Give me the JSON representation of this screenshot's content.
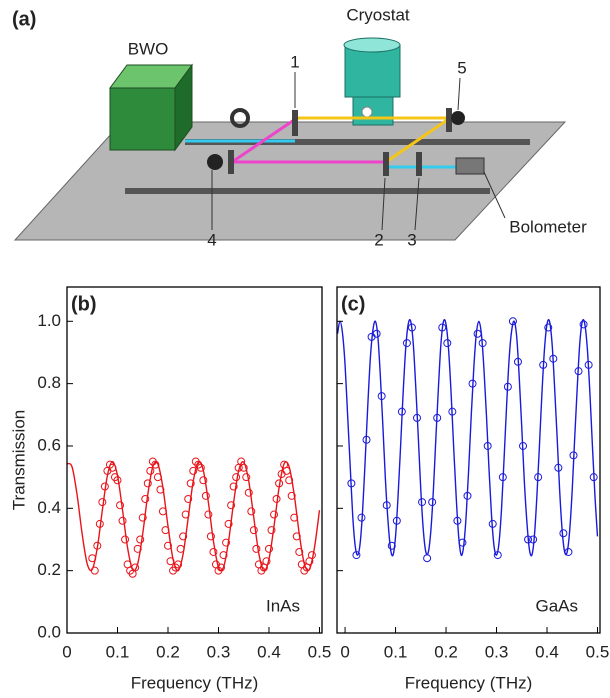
{
  "diagram": {
    "panel_label": "(a)",
    "components": {
      "source": "BWO",
      "cryostat": "Cryostat",
      "detector": "Bolometer"
    },
    "mirrors": [
      "1",
      "2",
      "3",
      "4",
      "5"
    ]
  },
  "chart_data": [
    {
      "type": "scatter",
      "panel_label": "(b)",
      "annotation": "InAs",
      "xlabel": "Frequency (THz)",
      "ylabel": "Transmission",
      "show_ytick_labels": true,
      "xlim": [
        0,
        0.505
      ],
      "ylim": [
        0,
        1.11
      ],
      "xticks": [
        0,
        0.1,
        0.2,
        0.3,
        0.4,
        0.5
      ],
      "yticks": [
        {
          "value": 0,
          "label": "0.0"
        },
        0.2,
        0.4,
        0.6,
        0.8,
        {
          "value": 1,
          "label": "1.0"
        }
      ],
      "series": [
        {
          "mode": "line",
          "color": "#e8141a",
          "x": [
            0,
            0.01,
            0.02,
            0.03,
            0.04,
            0.05,
            0.06,
            0.07,
            0.08,
            0.09,
            0.1,
            0.11,
            0.12,
            0.13,
            0.14,
            0.15,
            0.16,
            0.17,
            0.18,
            0.19,
            0.2,
            0.21,
            0.22,
            0.23,
            0.24,
            0.25,
            0.26,
            0.27,
            0.28,
            0.29,
            0.3,
            0.31,
            0.32,
            0.33,
            0.34,
            0.35,
            0.36,
            0.37,
            0.38,
            0.39,
            0.4,
            0.41,
            0.42,
            0.43,
            0.44,
            0.45,
            0.46,
            0.47,
            0.48,
            0.49,
            0.5
          ],
          "values": [
            0.543,
            0.533,
            0.443,
            0.318,
            0.222,
            0.204,
            0.273,
            0.394,
            0.505,
            0.55,
            0.505,
            0.394,
            0.273,
            0.204,
            0.222,
            0.319,
            0.444,
            0.534,
            0.542,
            0.466,
            0.343,
            0.237,
            0.2,
            0.254,
            0.369,
            0.487,
            0.548,
            0.521,
            0.419,
            0.295,
            0.211,
            0.211,
            0.295,
            0.419,
            0.521,
            0.548,
            0.487,
            0.369,
            0.254,
            0.2,
            0.237,
            0.343,
            0.466,
            0.543,
            0.533,
            0.443,
            0.318,
            0.222,
            0.204,
            0.273,
            0.394
          ]
        },
        {
          "mode": "markers",
          "color": "#e8141a",
          "x": [
            0.05,
            0.055,
            0.06,
            0.065,
            0.07,
            0.075,
            0.08,
            0.085,
            0.09,
            0.095,
            0.1,
            0.105,
            0.11,
            0.115,
            0.12,
            0.125,
            0.13,
            0.135,
            0.14,
            0.145,
            0.15,
            0.155,
            0.16,
            0.165,
            0.17,
            0.175,
            0.18,
            0.185,
            0.19,
            0.195,
            0.2,
            0.205,
            0.21,
            0.215,
            0.22,
            0.225,
            0.23,
            0.235,
            0.24,
            0.245,
            0.25,
            0.255,
            0.26,
            0.265,
            0.27,
            0.275,
            0.28,
            0.285,
            0.29,
            0.295,
            0.3,
            0.305,
            0.31,
            0.315,
            0.32,
            0.325,
            0.33,
            0.335,
            0.34,
            0.345,
            0.35,
            0.355,
            0.36,
            0.365,
            0.37,
            0.375,
            0.38,
            0.385,
            0.39,
            0.395,
            0.4,
            0.405,
            0.41,
            0.415,
            0.42,
            0.425,
            0.43,
            0.435,
            0.44,
            0.445,
            0.45,
            0.455,
            0.46,
            0.465,
            0.47,
            0.475,
            0.48,
            0.485
          ],
          "values": [
            0.24,
            0.2,
            0.28,
            0.35,
            0.42,
            0.47,
            0.52,
            0.54,
            0.53,
            0.5,
            0.49,
            0.41,
            0.36,
            0.3,
            0.22,
            0.2,
            0.19,
            0.21,
            0.27,
            0.3,
            0.37,
            0.43,
            0.48,
            0.52,
            0.55,
            0.54,
            0.5,
            0.46,
            0.39,
            0.33,
            0.28,
            0.23,
            0.2,
            0.21,
            0.22,
            0.27,
            0.31,
            0.38,
            0.43,
            0.48,
            0.52,
            0.55,
            0.54,
            0.53,
            0.49,
            0.44,
            0.38,
            0.31,
            0.26,
            0.22,
            0.2,
            0.21,
            0.25,
            0.29,
            0.35,
            0.41,
            0.47,
            0.5,
            0.53,
            0.55,
            0.53,
            0.5,
            0.45,
            0.39,
            0.33,
            0.27,
            0.22,
            0.2,
            0.21,
            0.23,
            0.27,
            0.33,
            0.38,
            0.43,
            0.48,
            0.51,
            0.54,
            0.52,
            0.49,
            0.44,
            0.37,
            0.31,
            0.26,
            0.22,
            0.2,
            0.21,
            0.23,
            0.25
          ]
        }
      ]
    },
    {
      "type": "scatter",
      "panel_label": "(c)",
      "annotation": "GaAs",
      "xlabel": "Frequency (THz)",
      "show_ytick_labels": false,
      "xlim": [
        -0.016,
        0.505
      ],
      "ylim": [
        0,
        1.11
      ],
      "xticks": [
        0,
        0.1,
        0.2,
        0.3,
        0.4,
        0.5
      ],
      "yticks": [
        0,
        0.2,
        0.4,
        0.6,
        0.8,
        1
      ],
      "series": [
        {
          "mode": "line",
          "color": "#1a1adc",
          "x": [
            -0.015,
            -0.01,
            -0.005,
            0,
            0.005,
            0.01,
            0.015,
            0.02,
            0.025,
            0.03,
            0.035,
            0.04,
            0.045,
            0.05,
            0.055,
            0.06,
            0.065,
            0.07,
            0.075,
            0.08,
            0.085,
            0.09,
            0.095,
            0.1,
            0.105,
            0.11,
            0.115,
            0.12,
            0.125,
            0.13,
            0.135,
            0.14,
            0.145,
            0.15,
            0.155,
            0.16,
            0.165,
            0.17,
            0.175,
            0.18,
            0.185,
            0.19,
            0.195,
            0.2,
            0.205,
            0.21,
            0.215,
            0.22,
            0.225,
            0.23,
            0.235,
            0.24,
            0.245,
            0.25,
            0.255,
            0.26,
            0.265,
            0.27,
            0.275,
            0.28,
            0.285,
            0.29,
            0.295,
            0.3,
            0.305,
            0.31,
            0.315,
            0.32,
            0.325,
            0.33,
            0.335,
            0.34,
            0.345,
            0.35,
            0.355,
            0.36,
            0.365,
            0.37,
            0.375,
            0.38,
            0.385,
            0.39,
            0.395,
            0.4,
            0.405,
            0.41,
            0.415,
            0.42,
            0.425,
            0.43,
            0.435,
            0.44,
            0.445,
            0.45,
            0.455,
            0.46,
            0.465,
            0.47,
            0.475,
            0.48,
            0.485,
            0.49,
            0.495,
            0.5
          ],
          "values": [
            0.96,
            1.0,
            0.96,
            0.86,
            0.7,
            0.54,
            0.38,
            0.28,
            0.25,
            0.29,
            0.4,
            0.56,
            0.73,
            0.88,
            0.97,
            1.0,
            0.95,
            0.82,
            0.66,
            0.49,
            0.36,
            0.27,
            0.25,
            0.31,
            0.44,
            0.6,
            0.77,
            0.91,
            0.99,
            1.0,
            0.93,
            0.79,
            0.63,
            0.46,
            0.33,
            0.26,
            0.26,
            0.33,
            0.46,
            0.63,
            0.79,
            0.93,
            1.0,
            0.99,
            0.91,
            0.77,
            0.6,
            0.44,
            0.31,
            0.25,
            0.28,
            0.38,
            0.53,
            0.7,
            0.85,
            0.96,
            1.0,
            0.96,
            0.85,
            0.7,
            0.53,
            0.38,
            0.28,
            0.25,
            0.29,
            0.4,
            0.56,
            0.73,
            0.88,
            0.97,
            1.0,
            0.95,
            0.82,
            0.66,
            0.49,
            0.36,
            0.27,
            0.25,
            0.31,
            0.44,
            0.6,
            0.77,
            0.91,
            0.99,
            1.0,
            0.93,
            0.79,
            0.63,
            0.46,
            0.33,
            0.26,
            0.26,
            0.33,
            0.46,
            0.63,
            0.79,
            0.93,
            1.0,
            0.99,
            0.91,
            0.77,
            0.6,
            0.44,
            0.31
          ]
        },
        {
          "mode": "markers",
          "color": "#1a1adc",
          "x": [
            0.0125,
            0.0225,
            0.0325,
            0.0425,
            0.0525,
            0.0625,
            0.0725,
            0.0825,
            0.0925,
            0.1025,
            0.1125,
            0.1225,
            0.1325,
            0.1425,
            0.1525,
            0.1625,
            0.1725,
            0.1825,
            0.1925,
            0.2025,
            0.2125,
            0.2225,
            0.2325,
            0.2425,
            0.2525,
            0.2625,
            0.2725,
            0.2825,
            0.2925,
            0.3025,
            0.3125,
            0.3225,
            0.3325,
            0.3425,
            0.3525,
            0.3625,
            0.3725,
            0.3825,
            0.3925,
            0.4025,
            0.4125,
            0.4225,
            0.4325,
            0.4425,
            0.4525,
            0.4625,
            0.4725,
            0.4825,
            0.4925
          ],
          "values": [
            0.48,
            0.25,
            0.37,
            0.62,
            0.95,
            0.96,
            0.76,
            0.41,
            0.28,
            0.36,
            0.71,
            0.93,
            0.98,
            0.69,
            0.42,
            0.24,
            0.42,
            0.69,
            0.98,
            0.93,
            0.71,
            0.36,
            0.29,
            0.44,
            0.8,
            0.96,
            0.93,
            0.6,
            0.35,
            0.25,
            0.5,
            0.79,
            1.0,
            0.87,
            0.6,
            0.3,
            0.3,
            0.5,
            0.86,
            0.98,
            0.88,
            0.53,
            0.32,
            0.26,
            0.57,
            0.84,
            0.99,
            0.86,
            0.5
          ]
        }
      ]
    }
  ]
}
